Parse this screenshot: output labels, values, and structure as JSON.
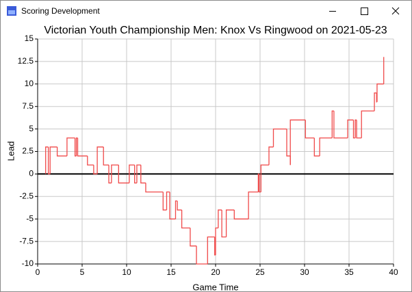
{
  "window_title": "Scoring Development",
  "chart_data": {
    "type": "step-line",
    "title": "Victorian Youth Championship Men: Knox Vs Ringwood on 2021-05-23",
    "x_label": "Game Time",
    "y_label": "Lead",
    "xlim": [
      0,
      40
    ],
    "xticks": [
      0,
      5,
      10,
      15,
      20,
      25,
      30,
      35,
      40
    ],
    "ylim": [
      -10,
      15
    ],
    "yticks": [
      -10,
      -7.5,
      -5,
      -2.5,
      0,
      2.5,
      5,
      7.5,
      10,
      12.5,
      15
    ],
    "grid": true,
    "series": [
      {
        "color": "#f04848",
        "x": [
          0.9,
          0.9,
          1.2,
          1.4,
          2.2,
          3.3,
          4.2,
          4.35,
          4.5,
          5.6,
          6.3,
          6.7,
          7.4,
          8.0,
          8.3,
          9.1,
          10.3,
          10.9,
          11.15,
          11.6,
          12.15,
          14.1,
          14.5,
          14.85,
          15.5,
          15.7,
          16.2,
          17.15,
          17.85,
          19.1,
          19.9,
          20.0,
          20.3,
          20.7,
          21.2,
          22.1,
          23.7,
          24.8,
          24.9,
          25.1,
          26.0,
          26.5,
          28.0,
          28.4,
          28.4,
          30.1,
          31.1,
          31.7,
          33.1,
          33.3,
          34.85,
          35.5,
          35.7,
          35.85,
          36.4,
          37.85,
          38.1,
          38.15,
          38.9
        ],
        "values": [
          0,
          3,
          0,
          3,
          2,
          4,
          2,
          4,
          2,
          1,
          0,
          3,
          1,
          -1,
          1,
          -1,
          1,
          -1,
          1,
          -1,
          -2,
          -4,
          -2,
          -5,
          -3,
          -4,
          -6,
          -8,
          -10,
          -7,
          -9,
          -6,
          -4,
          -7,
          -4,
          -5,
          -2,
          0,
          -2,
          1,
          3,
          5,
          2,
          1,
          6,
          4,
          2,
          4,
          7,
          4,
          6,
          4,
          6,
          4,
          7,
          9,
          8,
          10,
          13
        ]
      }
    ]
  }
}
